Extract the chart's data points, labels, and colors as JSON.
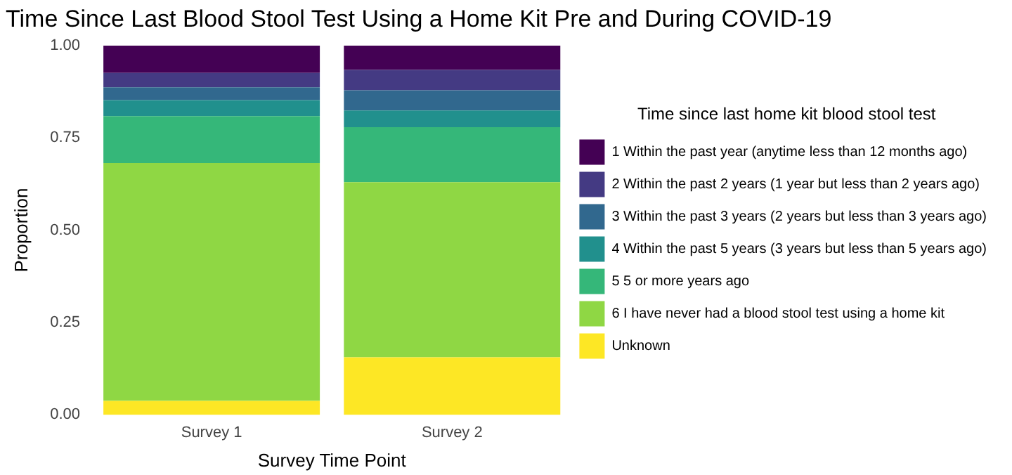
{
  "chart_data": {
    "type": "bar",
    "stacked": true,
    "title": "Time Since Last Blood Stool Test Using a Home Kit Pre and During COVID-19",
    "xlabel": "Survey Time Point",
    "ylabel": "Proportion",
    "legend_title": "Time since last home kit blood stool test",
    "categories": [
      "Survey 1",
      "Survey 2"
    ],
    "ylim": [
      0,
      1
    ],
    "yticks": [
      {
        "value": 0,
        "label": "0.00"
      },
      {
        "value": 0.25,
        "label": "0.25"
      },
      {
        "value": 0.5,
        "label": "0.50"
      },
      {
        "value": 0.75,
        "label": "0.75"
      },
      {
        "value": 1,
        "label": "1.00"
      }
    ],
    "grid": false,
    "legend": "right",
    "series": [
      {
        "name": "Unknown",
        "color": "#fde725",
        "values": [
          0.038,
          0.156
        ]
      },
      {
        "name": "6 I have never had a blood stool test using a home kit",
        "color": "#8fd744",
        "values": [
          0.644,
          0.474
        ]
      },
      {
        "name": "5 5 or more years ago",
        "color": "#35b779",
        "values": [
          0.127,
          0.149
        ]
      },
      {
        "name": "4 Within the past 5 years (3 years but less than 5 years ago)",
        "color": "#21908d",
        "values": [
          0.043,
          0.045
        ]
      },
      {
        "name": "3 Within the past 3 years (2 years but less than 3 years ago)",
        "color": "#31688e",
        "values": [
          0.035,
          0.055
        ]
      },
      {
        "name": "2 Within the past 2 years (1 year but less than 2 years ago)",
        "color": "#443a83",
        "values": [
          0.039,
          0.055
        ]
      },
      {
        "name": "1 Within the past year (anytime less than 12 months ago)",
        "color": "#440154",
        "values": [
          0.074,
          0.066
        ]
      }
    ]
  }
}
